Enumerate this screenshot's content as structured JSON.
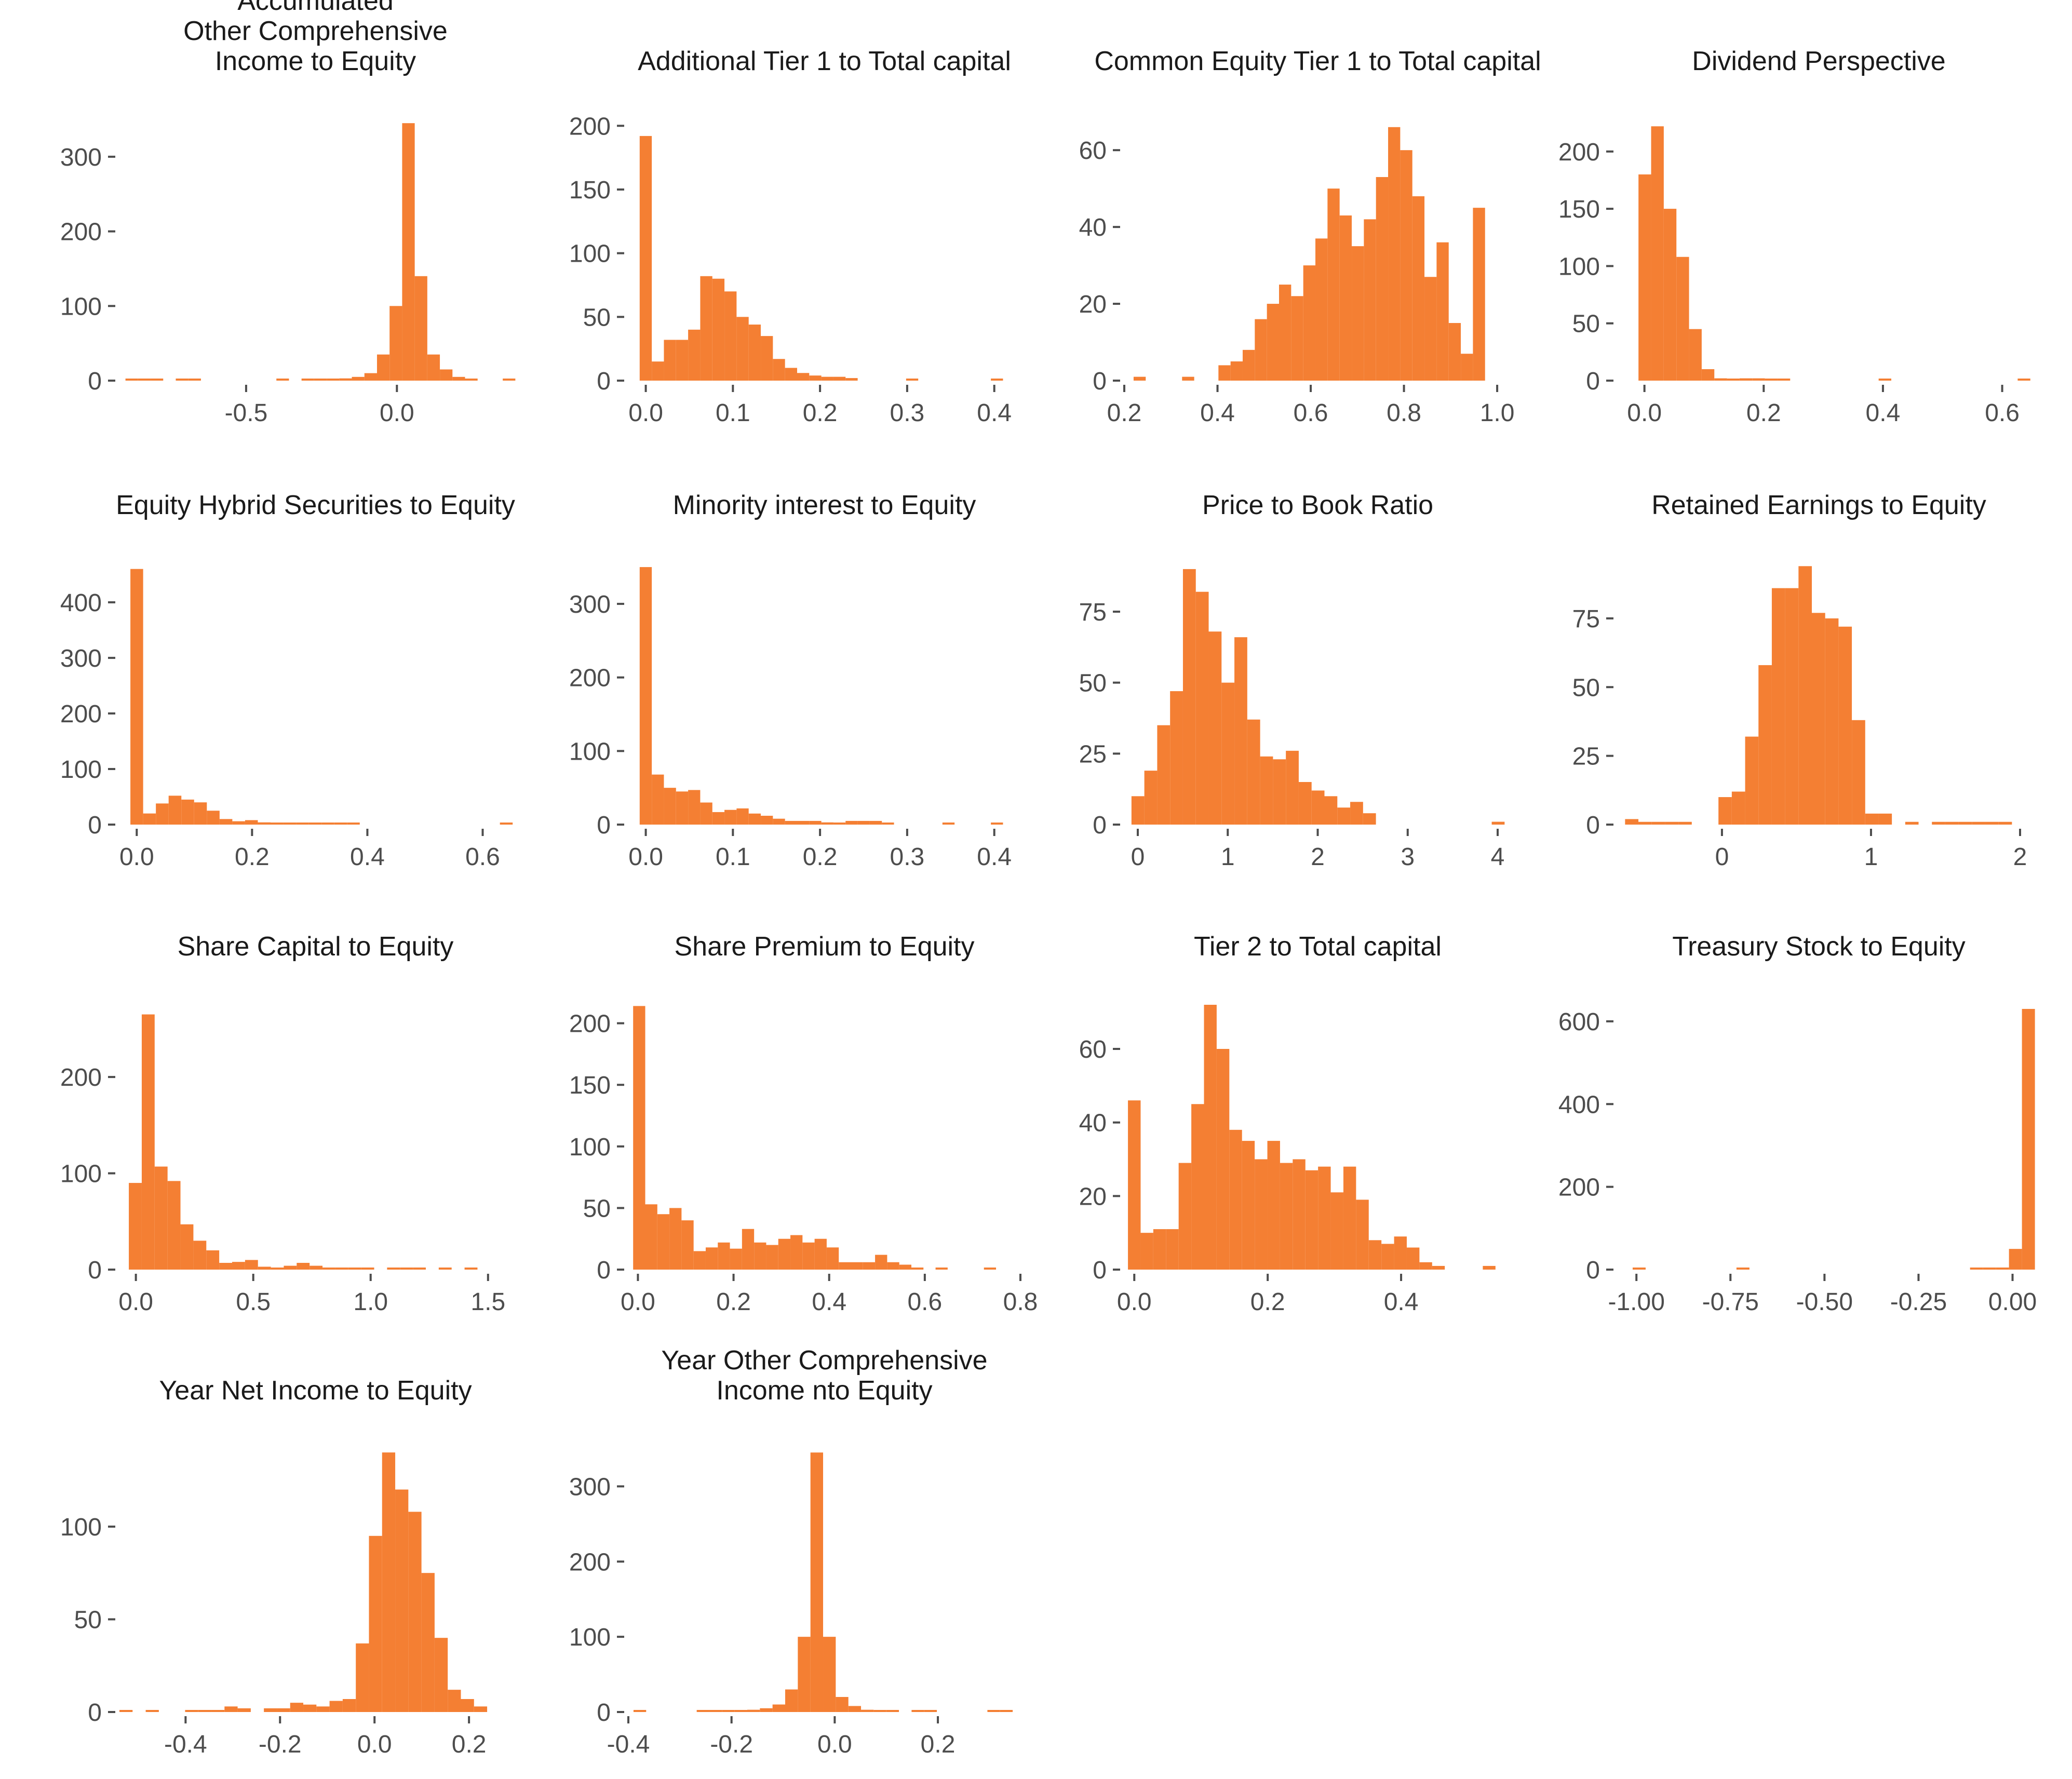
{
  "figure": {
    "bar_color": "#f47f33",
    "background": "#ffffff",
    "text_color": "#1a1a1a",
    "tick_color": "#4d4d4d"
  },
  "chart_data": [
    {
      "type": "bar",
      "name": "accumulated-oci-to-equity",
      "title": [
        "Accumulated",
        "Other Comprehensive",
        "Income to Equity"
      ],
      "xlim": [
        -0.92,
        0.38
      ],
      "ylim": [
        0,
        350
      ],
      "xticks": [
        -0.5,
        0.0
      ],
      "xtick_labels": [
        "-0.5",
        "0.0"
      ],
      "yticks": [
        0,
        100,
        200,
        300
      ],
      "ytick_labels": [
        "0",
        "100",
        "200",
        "300"
      ],
      "bin_start": -0.9,
      "bin_width": 0.0417,
      "values": [
        1,
        1,
        1,
        0,
        1,
        1,
        0,
        0,
        0,
        0,
        0,
        0,
        1,
        0,
        1,
        1,
        2,
        3,
        5,
        10,
        35,
        100,
        345,
        140,
        35,
        15,
        5,
        1,
        0,
        0,
        1
      ]
    },
    {
      "type": "bar",
      "name": "additional-tier1-to-total-capital",
      "title": [
        "Additional Tier 1 to Total capital"
      ],
      "xlim": [
        -0.02,
        0.43
      ],
      "ylim": [
        0,
        205
      ],
      "xticks": [
        0.0,
        0.1,
        0.2,
        0.3,
        0.4
      ],
      "xtick_labels": [
        "0.0",
        "0.1",
        "0.2",
        "0.3",
        "0.4"
      ],
      "yticks": [
        0,
        50,
        100,
        150,
        200
      ],
      "ytick_labels": [
        "0",
        "50",
        "100",
        "150",
        "200"
      ],
      "bin_start": -0.007,
      "bin_width": 0.0139,
      "values": [
        192,
        15,
        32,
        32,
        40,
        82,
        80,
        70,
        50,
        44,
        35,
        17,
        10,
        6,
        4,
        3,
        3,
        2,
        0,
        0,
        0,
        0,
        1,
        0,
        0,
        0,
        0,
        0,
        0,
        1
      ]
    },
    {
      "type": "bar",
      "name": "cet1-to-total-capital",
      "title": [
        "Common Equity Tier 1 to Total capital"
      ],
      "xlim": [
        0.2,
        1.03
      ],
      "ylim": [
        0,
        68
      ],
      "xticks": [
        0.2,
        0.4,
        0.6,
        0.8,
        1.0
      ],
      "xtick_labels": [
        "0.2",
        "0.4",
        "0.6",
        "0.8",
        "1.0"
      ],
      "yticks": [
        0,
        20,
        40,
        60
      ],
      "ytick_labels": [
        "0",
        "20",
        "40",
        "60"
      ],
      "bin_start": 0.22,
      "bin_width": 0.026,
      "values": [
        1,
        0,
        0,
        0,
        1,
        0,
        0,
        4,
        5,
        8,
        16,
        20,
        25,
        22,
        30,
        37,
        50,
        43,
        35,
        42,
        53,
        66,
        60,
        48,
        27,
        36,
        15,
        7,
        45
      ]
    },
    {
      "type": "bar",
      "name": "dividend-perspective",
      "title": [
        "Dividend Perspective"
      ],
      "xlim": [
        -0.045,
        0.63
      ],
      "ylim": [
        0,
        228
      ],
      "xticks": [
        0.0,
        0.2,
        0.4,
        0.6
      ],
      "xtick_labels": [
        "0.0",
        "0.2",
        "0.4",
        "0.6"
      ],
      "yticks": [
        0,
        50,
        100,
        150,
        200
      ],
      "ytick_labels": [
        "0",
        "50",
        "100",
        "150",
        "200"
      ],
      "bin_start": -0.01,
      "bin_width": 0.0212,
      "values": [
        180,
        222,
        150,
        108,
        45,
        10,
        2,
        1,
        2,
        2,
        1,
        1,
        0,
        0,
        0,
        0,
        0,
        0,
        0,
        1,
        0,
        0,
        0,
        0,
        0,
        0,
        0,
        0,
        0,
        0,
        1
      ]
    },
    {
      "type": "bar",
      "name": "equity-hybrid-securities-to-equity",
      "title": [
        "Equity Hybrid Securities to Equity"
      ],
      "xlim": [
        -0.03,
        0.65
      ],
      "ylim": [
        0,
        470
      ],
      "xticks": [
        0.0,
        0.2,
        0.4,
        0.6
      ],
      "xtick_labels": [
        "0.0",
        "0.2",
        "0.4",
        "0.6"
      ],
      "yticks": [
        0,
        100,
        200,
        300,
        400
      ],
      "ytick_labels": [
        "0",
        "100",
        "200",
        "300",
        "400"
      ],
      "bin_start": -0.011,
      "bin_width": 0.0221,
      "values": [
        460,
        20,
        38,
        52,
        45,
        40,
        25,
        10,
        6,
        8,
        4,
        2,
        2,
        1,
        1,
        1,
        1,
        1,
        0,
        0,
        0,
        0,
        0,
        0,
        0,
        0,
        0,
        0,
        0,
        1
      ]
    },
    {
      "type": "bar",
      "name": "minority-interest-to-equity",
      "title": [
        "Minority interest to Equity"
      ],
      "xlim": [
        -0.02,
        0.43
      ],
      "ylim": [
        0,
        355
      ],
      "xticks": [
        0.0,
        0.1,
        0.2,
        0.3,
        0.4
      ],
      "xtick_labels": [
        "0.0",
        "0.1",
        "0.2",
        "0.3",
        "0.4"
      ],
      "yticks": [
        0,
        100,
        200,
        300
      ],
      "ytick_labels": [
        "0",
        "100",
        "200",
        "300"
      ],
      "bin_start": -0.007,
      "bin_width": 0.0139,
      "values": [
        350,
        68,
        50,
        45,
        47,
        30,
        17,
        20,
        22,
        15,
        12,
        8,
        5,
        5,
        5,
        3,
        2,
        5,
        5,
        5,
        1,
        0,
        0,
        0,
        0,
        1,
        0,
        0,
        0,
        1
      ]
    },
    {
      "type": "bar",
      "name": "price-to-book-ratio",
      "title": [
        "Price to Book Ratio"
      ],
      "xlim": [
        -0.15,
        4.15
      ],
      "ylim": [
        0,
        92
      ],
      "xticks": [
        0,
        1,
        2,
        3,
        4
      ],
      "xtick_labels": [
        "0",
        "1",
        "2",
        "3",
        "4"
      ],
      "yticks": [
        0,
        25,
        50,
        75
      ],
      "ytick_labels": [
        "0",
        "25",
        "50",
        "75"
      ],
      "bin_start": -0.07,
      "bin_width": 0.143,
      "values": [
        10,
        19,
        35,
        47,
        90,
        82,
        68,
        50,
        66,
        37,
        24,
        23,
        26,
        15,
        12,
        10,
        6,
        8,
        4,
        0,
        0,
        0,
        0,
        0,
        0,
        0,
        0,
        0,
        1
      ]
    },
    {
      "type": "bar",
      "name": "retained-earnings-to-equity",
      "title": [
        "Retained Earnings to Equity"
      ],
      "xlim": [
        -0.7,
        2.0
      ],
      "ylim": [
        0,
        95
      ],
      "xticks": [
        0,
        1,
        2
      ],
      "xtick_labels": [
        "0",
        "1",
        "2"
      ],
      "yticks": [
        0,
        25,
        50,
        75
      ],
      "ytick_labels": [
        "0",
        "25",
        "50",
        "75"
      ],
      "bin_start": -0.65,
      "bin_width": 0.0895,
      "values": [
        2,
        1,
        1,
        1,
        1,
        0,
        0,
        10,
        12,
        32,
        58,
        86,
        86,
        94,
        77,
        75,
        72,
        38,
        4,
        4,
        0,
        1,
        0,
        1,
        1,
        1,
        1,
        1,
        1,
        0
      ]
    },
    {
      "type": "bar",
      "name": "share-capital-to-equity",
      "title": [
        "Share Capital to Equity"
      ],
      "xlim": [
        -0.07,
        1.6
      ],
      "ylim": [
        0,
        275
      ],
      "xticks": [
        0.0,
        0.5,
        1.0,
        1.5
      ],
      "xtick_labels": [
        "0.0",
        "0.5",
        "1.0",
        "1.5"
      ],
      "yticks": [
        0,
        100,
        200
      ],
      "ytick_labels": [
        "0",
        "100",
        "200"
      ],
      "bin_start": -0.03,
      "bin_width": 0.055,
      "values": [
        90,
        265,
        107,
        92,
        47,
        30,
        20,
        7,
        8,
        10,
        3,
        2,
        4,
        7,
        4,
        2,
        2,
        1,
        2,
        0,
        1,
        1,
        1,
        0,
        1,
        0,
        1,
        0,
        0
      ]
    },
    {
      "type": "bar",
      "name": "share-premium-to-equity",
      "title": [
        "Share Premium to Equity"
      ],
      "xlim": [
        -0.02,
        0.8
      ],
      "ylim": [
        0,
        215
      ],
      "xticks": [
        0.0,
        0.2,
        0.4,
        0.6,
        0.8
      ],
      "xtick_labels": [
        "0.0",
        "0.2",
        "0.4",
        "0.6",
        "0.8"
      ],
      "yticks": [
        0,
        50,
        100,
        150,
        200
      ],
      "ytick_labels": [
        "0",
        "50",
        "100",
        "150",
        "200"
      ],
      "bin_start": -0.01,
      "bin_width": 0.0253,
      "values": [
        214,
        53,
        45,
        50,
        40,
        15,
        18,
        22,
        17,
        33,
        22,
        20,
        25,
        28,
        22,
        25,
        18,
        6,
        6,
        6,
        12,
        6,
        4,
        1,
        0,
        1,
        0,
        0,
        0,
        1
      ]
    },
    {
      "type": "bar",
      "name": "tier2-to-total-capital",
      "title": [
        "Tier 2 to Total capital"
      ],
      "xlim": [
        -0.015,
        0.565
      ],
      "ylim": [
        0,
        72
      ],
      "xticks": [
        0.0,
        0.2,
        0.4
      ],
      "xtick_labels": [
        "0.0",
        "0.2",
        "0.4"
      ],
      "yticks": [
        0,
        20,
        40,
        60
      ],
      "ytick_labels": [
        "0",
        "20",
        "40",
        "60"
      ],
      "bin_start": -0.0095,
      "bin_width": 0.019,
      "values": [
        46,
        10,
        11,
        11,
        29,
        45,
        72,
        60,
        38,
        35,
        30,
        35,
        29,
        30,
        27,
        28,
        21,
        28,
        19,
        8,
        7,
        9,
        6,
        2,
        1,
        0,
        0,
        0,
        1
      ]
    },
    {
      "type": "bar",
      "name": "treasury-stock-to-equity",
      "title": [
        "Treasury Stock to Equity"
      ],
      "xlim": [
        -1.05,
        0.02
      ],
      "ylim": [
        0,
        640
      ],
      "xticks": [
        -1.0,
        -0.75,
        -0.5,
        -0.25,
        0.0
      ],
      "xtick_labels": [
        "-1.00",
        "-0.75",
        "-0.50",
        "-0.25",
        "0.00"
      ],
      "yticks": [
        0,
        200,
        400,
        600
      ],
      "ytick_labels": [
        "0",
        "200",
        "400",
        "600"
      ],
      "bin_start": -1.01,
      "bin_width": 0.0345,
      "values": [
        1,
        0,
        0,
        0,
        0,
        0,
        0,
        0,
        1,
        0,
        0,
        0,
        0,
        0,
        0,
        0,
        0,
        0,
        0,
        0,
        0,
        0,
        0,
        0,
        0,
        0,
        1,
        2,
        5,
        50,
        630
      ]
    },
    {
      "type": "bar",
      "name": "year-net-income-to-equity",
      "title": [
        "Year Net Income to Equity"
      ],
      "xlim": [
        -0.54,
        0.29
      ],
      "ylim": [
        0,
        142
      ],
      "xticks": [
        -0.4,
        -0.2,
        0.0,
        0.2
      ],
      "xtick_labels": [
        "-0.4",
        "-0.2",
        "0.0",
        "0.2"
      ],
      "yticks": [
        0,
        50,
        100
      ],
      "ytick_labels": [
        "0",
        "50",
        "100"
      ],
      "bin_start": -0.54,
      "bin_width": 0.0278,
      "values": [
        1,
        0,
        1,
        0,
        0,
        1,
        1,
        1,
        3,
        2,
        0,
        2,
        2,
        5,
        4,
        3,
        6,
        7,
        37,
        95,
        140,
        120,
        108,
        75,
        40,
        12,
        7,
        3,
        0,
        0
      ]
    },
    {
      "type": "bar",
      "name": "year-oci-to-equity",
      "title": [
        "Year Other Comprehensive",
        "Income nto Equity"
      ],
      "xlim": [
        -0.4,
        0.36
      ],
      "ylim": [
        0,
        350
      ],
      "xticks": [
        -0.4,
        -0.2,
        0.0,
        0.2
      ],
      "xtick_labels": [
        "-0.4",
        "-0.2",
        "0.0",
        "0.2"
      ],
      "yticks": [
        0,
        100,
        200,
        300
      ],
      "ytick_labels": [
        "0",
        "100",
        "200",
        "300"
      ],
      "bin_start": -0.39,
      "bin_width": 0.0245,
      "values": [
        1,
        0,
        0,
        0,
        0,
        1,
        1,
        1,
        2,
        3,
        5,
        10,
        30,
        100,
        345,
        100,
        20,
        8,
        3,
        1,
        1,
        0,
        1,
        1,
        0,
        0,
        0,
        0,
        1,
        1
      ]
    }
  ]
}
